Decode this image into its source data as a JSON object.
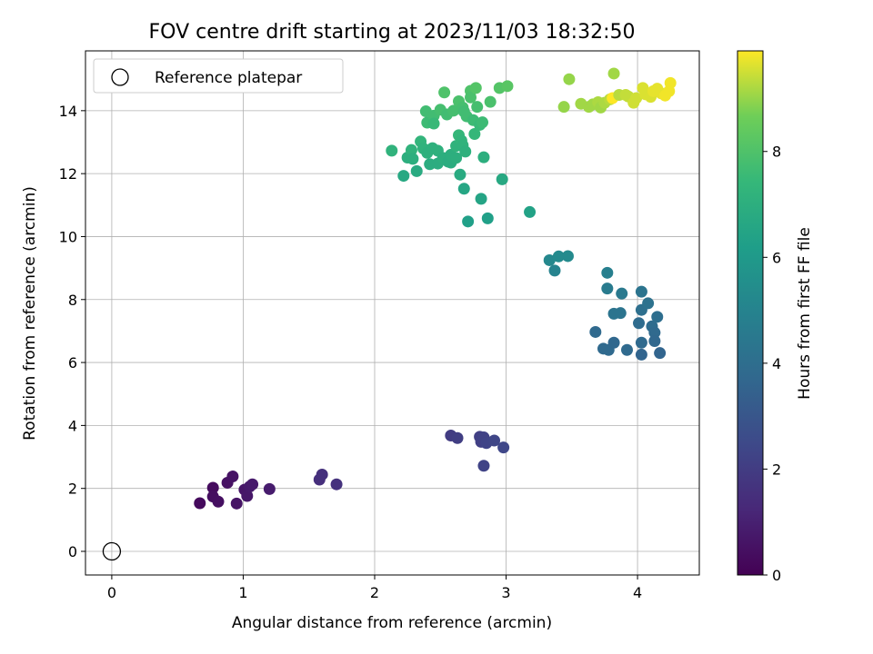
{
  "chart_data": {
    "type": "scatter",
    "title": "FOV centre drift starting at 2023/11/03 18:32:50",
    "xlabel": "Angular distance from reference (arcmin)",
    "ylabel": "Rotation from reference (arcmin)",
    "xlim": [
      -0.2,
      4.47
    ],
    "ylim": [
      -0.75,
      15.9
    ],
    "x_ticks": [
      0,
      1,
      2,
      3,
      4
    ],
    "y_ticks": [
      0,
      2,
      4,
      6,
      8,
      10,
      12,
      14
    ],
    "grid": true,
    "legend": {
      "position": "top-left",
      "entries": [
        "Reference platepar"
      ]
    },
    "reference_point": {
      "x": 0,
      "y": 0,
      "label": "Reference platepar"
    },
    "colorbar": {
      "label": "Hours from first FF file",
      "colormap": "viridis",
      "range": [
        0,
        9.9
      ],
      "ticks": [
        0,
        2,
        4,
        6,
        8
      ]
    },
    "points": [
      {
        "x": 0.67,
        "y": 1.53,
        "c": 0.3
      },
      {
        "x": 0.77,
        "y": 2.02,
        "c": 0.35
      },
      {
        "x": 0.77,
        "y": 1.74,
        "c": 0.4
      },
      {
        "x": 0.81,
        "y": 1.58,
        "c": 0.45
      },
      {
        "x": 0.88,
        "y": 2.18,
        "c": 0.5
      },
      {
        "x": 0.92,
        "y": 2.38,
        "c": 0.55
      },
      {
        "x": 0.95,
        "y": 1.52,
        "c": 0.6
      },
      {
        "x": 1.01,
        "y": 1.96,
        "c": 0.65
      },
      {
        "x": 1.03,
        "y": 1.76,
        "c": 0.7
      },
      {
        "x": 1.05,
        "y": 2.06,
        "c": 0.75
      },
      {
        "x": 1.07,
        "y": 2.13,
        "c": 0.8
      },
      {
        "x": 1.2,
        "y": 1.98,
        "c": 0.85
      },
      {
        "x": 1.58,
        "y": 2.28,
        "c": 1.5
      },
      {
        "x": 1.6,
        "y": 2.44,
        "c": 1.55
      },
      {
        "x": 1.71,
        "y": 2.13,
        "c": 1.6
      },
      {
        "x": 2.58,
        "y": 3.68,
        "c": 2.0
      },
      {
        "x": 2.63,
        "y": 3.6,
        "c": 2.05
      },
      {
        "x": 2.8,
        "y": 3.64,
        "c": 2.1
      },
      {
        "x": 2.81,
        "y": 3.48,
        "c": 2.15
      },
      {
        "x": 2.83,
        "y": 3.62,
        "c": 2.2
      },
      {
        "x": 2.83,
        "y": 2.72,
        "c": 2.25
      },
      {
        "x": 2.85,
        "y": 3.44,
        "c": 2.3
      },
      {
        "x": 2.91,
        "y": 3.52,
        "c": 2.35
      },
      {
        "x": 2.98,
        "y": 3.3,
        "c": 2.4
      },
      {
        "x": 3.68,
        "y": 6.97,
        "c": 3.8
      },
      {
        "x": 3.74,
        "y": 6.44,
        "c": 3.8
      },
      {
        "x": 3.78,
        "y": 6.4,
        "c": 3.8
      },
      {
        "x": 3.82,
        "y": 6.63,
        "c": 3.7
      },
      {
        "x": 3.82,
        "y": 7.55,
        "c": 4.3
      },
      {
        "x": 3.87,
        "y": 7.57,
        "c": 4.3
      },
      {
        "x": 3.88,
        "y": 8.19,
        "c": 4.5
      },
      {
        "x": 3.92,
        "y": 6.4,
        "c": 3.8
      },
      {
        "x": 4.01,
        "y": 7.25,
        "c": 3.9
      },
      {
        "x": 4.03,
        "y": 8.25,
        "c": 4.3
      },
      {
        "x": 4.03,
        "y": 7.67,
        "c": 4.1
      },
      {
        "x": 4.03,
        "y": 6.63,
        "c": 3.8
      },
      {
        "x": 4.03,
        "y": 6.25,
        "c": 3.6
      },
      {
        "x": 4.08,
        "y": 7.88,
        "c": 4.2
      },
      {
        "x": 4.11,
        "y": 7.15,
        "c": 3.9
      },
      {
        "x": 4.13,
        "y": 6.95,
        "c": 3.8
      },
      {
        "x": 4.13,
        "y": 6.68,
        "c": 3.7
      },
      {
        "x": 4.15,
        "y": 7.45,
        "c": 4.0
      },
      {
        "x": 4.17,
        "y": 6.3,
        "c": 3.6
      },
      {
        "x": 3.77,
        "y": 8.35,
        "c": 4.6
      },
      {
        "x": 3.77,
        "y": 8.85,
        "c": 4.8
      },
      {
        "x": 3.33,
        "y": 9.25,
        "c": 5.2
      },
      {
        "x": 3.37,
        "y": 8.92,
        "c": 5.0
      },
      {
        "x": 3.4,
        "y": 9.37,
        "c": 5.3
      },
      {
        "x": 3.47,
        "y": 9.38,
        "c": 5.3
      },
      {
        "x": 2.13,
        "y": 12.73,
        "c": 7.2
      },
      {
        "x": 2.22,
        "y": 11.93,
        "c": 6.7
      },
      {
        "x": 2.25,
        "y": 12.51,
        "c": 7.0
      },
      {
        "x": 2.28,
        "y": 12.75,
        "c": 7.2
      },
      {
        "x": 2.29,
        "y": 12.47,
        "c": 7.0
      },
      {
        "x": 2.32,
        "y": 12.08,
        "c": 6.8
      },
      {
        "x": 2.35,
        "y": 13.02,
        "c": 7.3
      },
      {
        "x": 2.37,
        "y": 12.8,
        "c": 7.2
      },
      {
        "x": 2.39,
        "y": 13.98,
        "c": 7.7
      },
      {
        "x": 2.4,
        "y": 13.62,
        "c": 7.6
      },
      {
        "x": 2.4,
        "y": 12.66,
        "c": 7.1
      },
      {
        "x": 2.42,
        "y": 12.3,
        "c": 6.9
      },
      {
        "x": 2.44,
        "y": 12.81,
        "c": 7.1
      },
      {
        "x": 2.45,
        "y": 13.84,
        "c": 7.7
      },
      {
        "x": 2.45,
        "y": 13.59,
        "c": 7.5
      },
      {
        "x": 2.48,
        "y": 12.73,
        "c": 7.1
      },
      {
        "x": 2.48,
        "y": 12.32,
        "c": 6.9
      },
      {
        "x": 2.5,
        "y": 14.03,
        "c": 7.8
      },
      {
        "x": 2.52,
        "y": 12.5,
        "c": 7.0
      },
      {
        "x": 2.53,
        "y": 14.58,
        "c": 8.0
      },
      {
        "x": 2.55,
        "y": 13.88,
        "c": 7.7
      },
      {
        "x": 2.56,
        "y": 12.38,
        "c": 6.9
      },
      {
        "x": 2.58,
        "y": 12.35,
        "c": 6.9
      },
      {
        "x": 2.58,
        "y": 12.6,
        "c": 7.0
      },
      {
        "x": 2.6,
        "y": 14.0,
        "c": 7.8
      },
      {
        "x": 2.62,
        "y": 12.88,
        "c": 7.2
      },
      {
        "x": 2.62,
        "y": 12.5,
        "c": 7.0
      },
      {
        "x": 2.64,
        "y": 14.3,
        "c": 7.9
      },
      {
        "x": 2.64,
        "y": 13.22,
        "c": 7.4
      },
      {
        "x": 2.65,
        "y": 11.97,
        "c": 6.8
      },
      {
        "x": 2.66,
        "y": 13.05,
        "c": 7.3
      },
      {
        "x": 2.67,
        "y": 12.9,
        "c": 7.2
      },
      {
        "x": 2.67,
        "y": 14.1,
        "c": 7.8
      },
      {
        "x": 2.68,
        "y": 11.52,
        "c": 6.6
      },
      {
        "x": 2.68,
        "y": 13.97,
        "c": 7.7
      },
      {
        "x": 2.69,
        "y": 12.7,
        "c": 7.1
      },
      {
        "x": 2.7,
        "y": 13.82,
        "c": 7.7
      },
      {
        "x": 2.71,
        "y": 10.48,
        "c": 6.3
      },
      {
        "x": 2.73,
        "y": 14.63,
        "c": 8.0
      },
      {
        "x": 2.73,
        "y": 14.42,
        "c": 7.9
      },
      {
        "x": 2.75,
        "y": 13.7,
        "c": 7.6
      },
      {
        "x": 2.76,
        "y": 13.26,
        "c": 7.4
      },
      {
        "x": 2.77,
        "y": 14.72,
        "c": 8.1
      },
      {
        "x": 2.78,
        "y": 14.12,
        "c": 7.8
      },
      {
        "x": 2.8,
        "y": 13.55,
        "c": 7.5
      },
      {
        "x": 2.82,
        "y": 13.63,
        "c": 7.6
      },
      {
        "x": 2.81,
        "y": 11.2,
        "c": 6.5
      },
      {
        "x": 2.83,
        "y": 12.52,
        "c": 7.0
      },
      {
        "x": 2.86,
        "y": 10.58,
        "c": 6.3
      },
      {
        "x": 2.88,
        "y": 14.28,
        "c": 7.9
      },
      {
        "x": 2.95,
        "y": 14.72,
        "c": 8.1
      },
      {
        "x": 2.97,
        "y": 11.82,
        "c": 6.7
      },
      {
        "x": 3.01,
        "y": 14.78,
        "c": 8.2
      },
      {
        "x": 3.18,
        "y": 10.78,
        "c": 6.4
      },
      {
        "x": 3.44,
        "y": 14.12,
        "c": 9.0
      },
      {
        "x": 3.48,
        "y": 15.0,
        "c": 9.0
      },
      {
        "x": 3.57,
        "y": 14.22,
        "c": 9.1
      },
      {
        "x": 3.63,
        "y": 14.12,
        "c": 9.1
      },
      {
        "x": 3.66,
        "y": 14.2,
        "c": 9.1
      },
      {
        "x": 3.7,
        "y": 14.27,
        "c": 9.2
      },
      {
        "x": 3.72,
        "y": 14.1,
        "c": 9.1
      },
      {
        "x": 3.75,
        "y": 14.25,
        "c": 9.2
      },
      {
        "x": 3.79,
        "y": 14.36,
        "c": 9.3
      },
      {
        "x": 3.81,
        "y": 14.4,
        "c": 9.9
      },
      {
        "x": 3.82,
        "y": 15.18,
        "c": 9.1
      },
      {
        "x": 3.86,
        "y": 14.5,
        "c": 9.3
      },
      {
        "x": 3.91,
        "y": 14.5,
        "c": 9.4
      },
      {
        "x": 3.93,
        "y": 14.45,
        "c": 9.4
      },
      {
        "x": 3.97,
        "y": 14.25,
        "c": 9.5
      },
      {
        "x": 3.99,
        "y": 14.4,
        "c": 9.5
      },
      {
        "x": 4.04,
        "y": 14.72,
        "c": 9.6
      },
      {
        "x": 4.06,
        "y": 14.52,
        "c": 9.6
      },
      {
        "x": 4.1,
        "y": 14.44,
        "c": 9.6
      },
      {
        "x": 4.12,
        "y": 14.62,
        "c": 9.7
      },
      {
        "x": 4.15,
        "y": 14.7,
        "c": 9.7
      },
      {
        "x": 4.18,
        "y": 14.55,
        "c": 9.7
      },
      {
        "x": 4.21,
        "y": 14.48,
        "c": 9.8
      },
      {
        "x": 4.24,
        "y": 14.62,
        "c": 9.8
      },
      {
        "x": 4.25,
        "y": 14.88,
        "c": 9.8
      }
    ]
  }
}
